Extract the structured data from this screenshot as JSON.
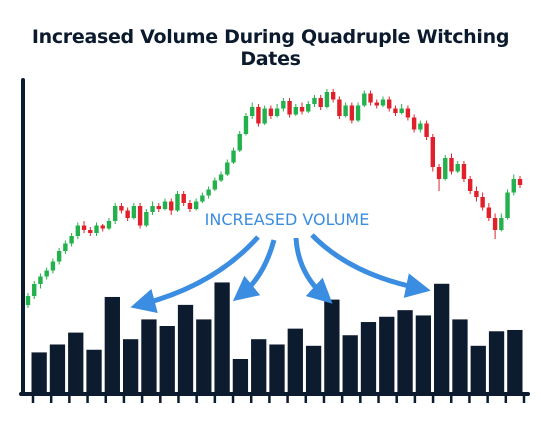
{
  "chart_data": {
    "type": "candlestick+bar",
    "title": "Increased Volume During Quadruple Witching Dates",
    "annotation": "INCREASED VOLUME",
    "colors": {
      "up": "#22b14c",
      "down": "#e0202a",
      "volume": "#0d1b2e",
      "annotation": "#3a8de0",
      "axis": "#0d1b2e"
    },
    "price_range": [
      0,
      100
    ],
    "volume_range": [
      0,
      100
    ],
    "candles": [
      [
        20,
        26,
        18,
        28
      ],
      [
        26,
        34,
        24,
        36
      ],
      [
        34,
        39,
        31,
        41
      ],
      [
        39,
        43,
        37,
        45
      ],
      [
        43,
        49,
        41,
        51
      ],
      [
        49,
        56,
        47,
        58
      ],
      [
        56,
        61,
        54,
        63
      ],
      [
        61,
        66,
        59,
        68
      ],
      [
        66,
        73,
        64,
        75
      ],
      [
        73,
        70,
        68,
        76
      ],
      [
        70,
        68,
        66,
        72
      ],
      [
        68,
        73,
        66,
        75
      ],
      [
        73,
        71,
        69,
        74
      ],
      [
        71,
        76,
        70,
        78
      ],
      [
        76,
        86,
        74,
        88
      ],
      [
        86,
        83,
        81,
        88
      ],
      [
        83,
        78,
        76,
        85
      ],
      [
        78,
        86,
        77,
        88
      ],
      [
        86,
        73,
        71,
        88
      ],
      [
        73,
        82,
        72,
        84
      ],
      [
        82,
        86,
        80,
        89
      ],
      [
        86,
        84,
        82,
        88
      ],
      [
        84,
        89,
        83,
        91
      ],
      [
        89,
        83,
        80,
        91
      ],
      [
        83,
        94,
        82,
        96
      ],
      [
        94,
        88,
        86,
        96
      ],
      [
        88,
        84,
        82,
        90
      ],
      [
        84,
        89,
        83,
        91
      ],
      [
        89,
        93,
        88,
        95
      ],
      [
        93,
        97,
        91,
        99
      ],
      [
        97,
        103,
        96,
        105
      ],
      [
        103,
        107,
        102,
        109
      ],
      [
        107,
        115,
        106,
        117
      ],
      [
        115,
        123,
        114,
        125
      ],
      [
        123,
        134,
        122,
        136
      ],
      [
        134,
        146,
        133,
        148
      ],
      [
        146,
        152,
        144,
        155
      ],
      [
        152,
        141,
        139,
        154
      ],
      [
        141,
        151,
        140,
        153
      ],
      [
        151,
        146,
        144,
        153
      ],
      [
        146,
        151,
        145,
        154
      ],
      [
        151,
        156,
        149,
        158
      ],
      [
        156,
        147,
        145,
        158
      ],
      [
        147,
        152,
        146,
        154
      ],
      [
        152,
        149,
        147,
        155
      ],
      [
        149,
        154,
        148,
        156
      ],
      [
        154,
        158,
        152,
        160
      ],
      [
        158,
        152,
        150,
        160
      ],
      [
        152,
        162,
        151,
        164
      ],
      [
        162,
        157,
        155,
        164
      ],
      [
        157,
        146,
        144,
        159
      ],
      [
        146,
        153,
        145,
        155
      ],
      [
        153,
        143,
        141,
        155
      ],
      [
        143,
        153,
        142,
        155
      ],
      [
        153,
        161,
        152,
        163
      ],
      [
        161,
        155,
        153,
        163
      ],
      [
        155,
        153,
        151,
        157
      ],
      [
        153,
        157,
        152,
        159
      ],
      [
        157,
        151,
        149,
        159
      ],
      [
        151,
        148,
        146,
        153
      ],
      [
        148,
        151,
        147,
        154
      ],
      [
        151,
        145,
        143,
        153
      ],
      [
        145,
        137,
        135,
        147
      ],
      [
        137,
        141,
        135,
        143
      ],
      [
        141,
        132,
        130,
        143
      ],
      [
        132,
        112,
        109,
        134
      ],
      [
        112,
        104,
        96,
        114
      ],
      [
        104,
        118,
        103,
        120
      ],
      [
        118,
        109,
        107,
        121
      ],
      [
        109,
        114,
        108,
        116
      ],
      [
        114,
        104,
        102,
        116
      ],
      [
        104,
        96,
        94,
        106
      ],
      [
        96,
        92,
        89,
        99
      ],
      [
        92,
        85,
        83,
        95
      ],
      [
        85,
        78,
        76,
        88
      ],
      [
        78,
        70,
        64,
        81
      ],
      [
        70,
        78,
        69,
        81
      ],
      [
        78,
        95,
        77,
        97
      ],
      [
        95,
        104,
        93,
        107
      ],
      [
        104,
        100,
        98,
        106
      ]
    ],
    "volume": [
      30,
      36,
      45,
      32,
      72,
      40,
      55,
      50,
      66,
      55,
      83,
      25,
      40,
      36,
      48,
      35,
      70,
      43,
      53,
      57,
      62,
      58,
      82,
      55,
      35,
      46,
      47
    ]
  }
}
